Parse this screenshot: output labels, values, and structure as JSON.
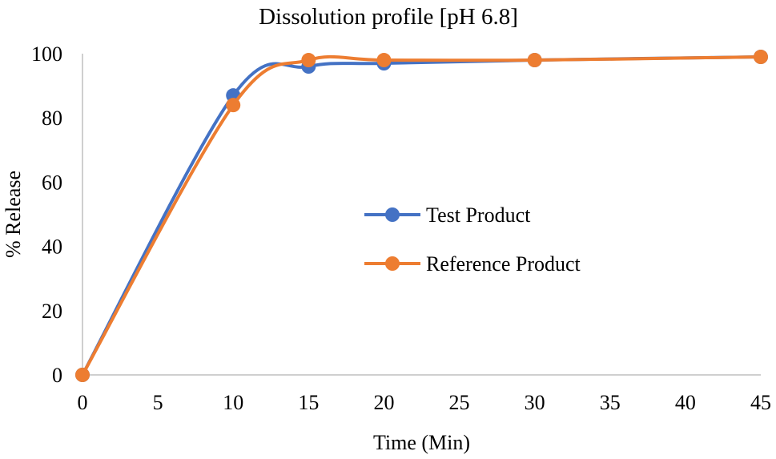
{
  "chart_data": {
    "type": "line",
    "title": "Dissolution profile [pH 6.8]",
    "xlabel": "Time (Min)",
    "ylabel": "% Release",
    "xlim": [
      0,
      45
    ],
    "ylim": [
      0,
      100
    ],
    "xticks": [
      0,
      5,
      10,
      15,
      20,
      25,
      30,
      35,
      40,
      45
    ],
    "yticks": [
      0,
      20,
      40,
      60,
      80,
      100
    ],
    "grid": false,
    "legend_position": "right-center",
    "smooth": true,
    "series": [
      {
        "name": "Test Product",
        "color": "#4472C4",
        "marker": "circle",
        "x": [
          0,
          10,
          15,
          20,
          30,
          45
        ],
        "y": [
          0,
          87,
          96,
          97,
          98,
          99
        ]
      },
      {
        "name": "Reference Product",
        "color": "#ED7D31",
        "marker": "circle",
        "x": [
          0,
          10,
          15,
          20,
          30,
          45
        ],
        "y": [
          0,
          84,
          98,
          98,
          98,
          99
        ]
      }
    ]
  }
}
